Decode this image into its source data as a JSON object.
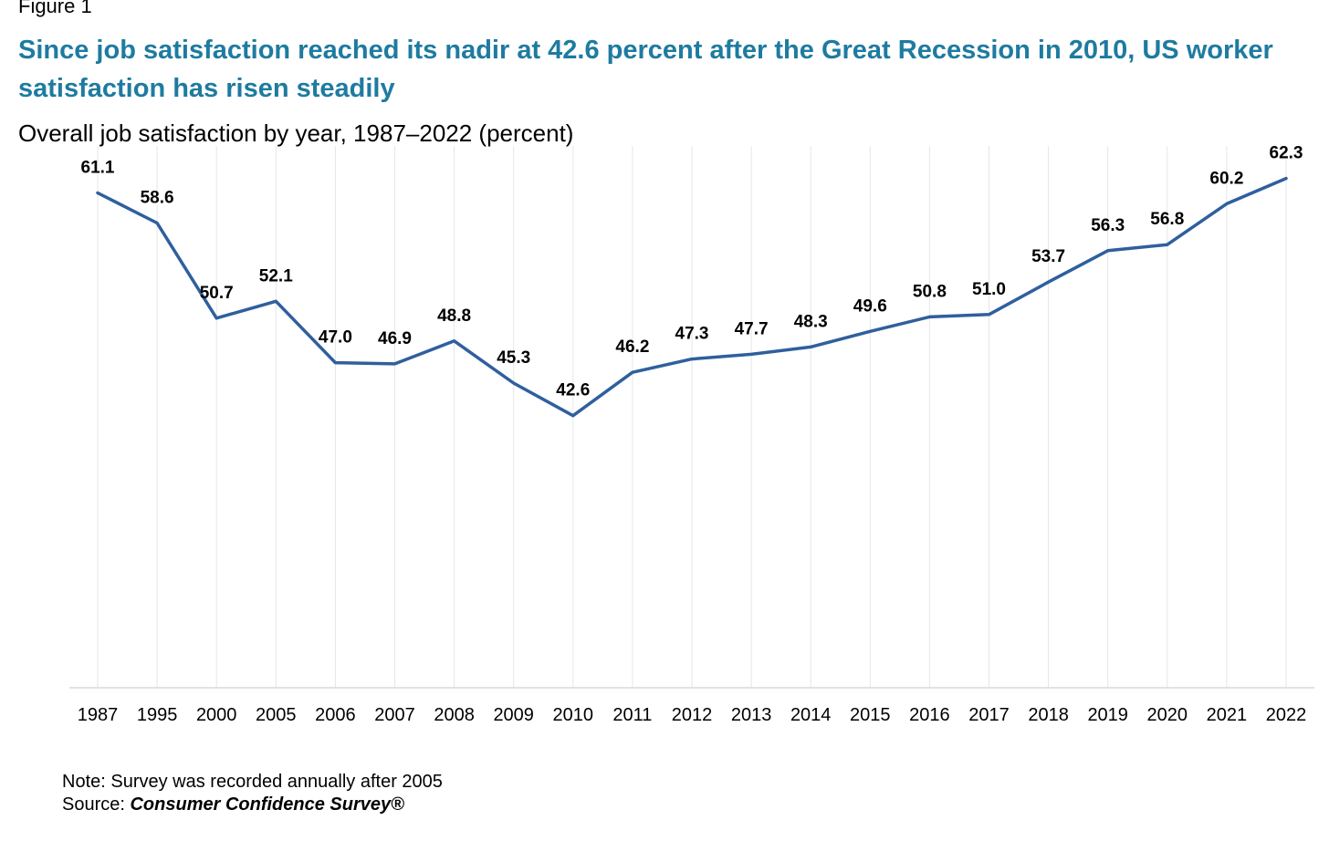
{
  "figure_label": "Figure 1",
  "chart_data": {
    "type": "line",
    "title": "Since job satisfaction reached its nadir at 42.6 percent after the Great Recession in 2010, US worker satisfaction has risen steadily",
    "subtitle": "Overall job satisfaction by year, 1987–2022 (percent)",
    "xlabel": "",
    "ylabel": "",
    "categories": [
      "1987",
      "1995",
      "2000",
      "2005",
      "2006",
      "2007",
      "2008",
      "2009",
      "2010",
      "2011",
      "2012",
      "2013",
      "2014",
      "2015",
      "2016",
      "2017",
      "2018",
      "2019",
      "2020",
      "2021",
      "2022"
    ],
    "series": [
      {
        "values": [
          61.1,
          58.6,
          50.7,
          52.1,
          47.0,
          46.9,
          48.8,
          45.3,
          42.6,
          46.2,
          47.3,
          47.7,
          48.3,
          49.6,
          50.8,
          51.0,
          53.7,
          56.3,
          56.8,
          60.2,
          62.3
        ],
        "labels": [
          "61.1",
          "58.6",
          "50.7",
          "52.1",
          "47.0",
          "46.9",
          "48.8",
          "45.3",
          "42.6",
          "46.2",
          "47.3",
          "47.7",
          "48.3",
          "49.6",
          "50.8",
          "51.0",
          "53.7",
          "56.3",
          "56.8",
          "60.2",
          "62.3"
        ],
        "color": "#2f5f9e"
      }
    ],
    "ylim": [
      20,
      65
    ],
    "grid": "vertical",
    "legend": "none",
    "gridline_color": "#e6e6e6",
    "axis_color": "#d9d9d9"
  },
  "notes": {
    "note": "Note: Survey was recorded annually after 2005",
    "source_prefix": "Source: ",
    "source_name": "Consumer Confidence Survey®"
  }
}
